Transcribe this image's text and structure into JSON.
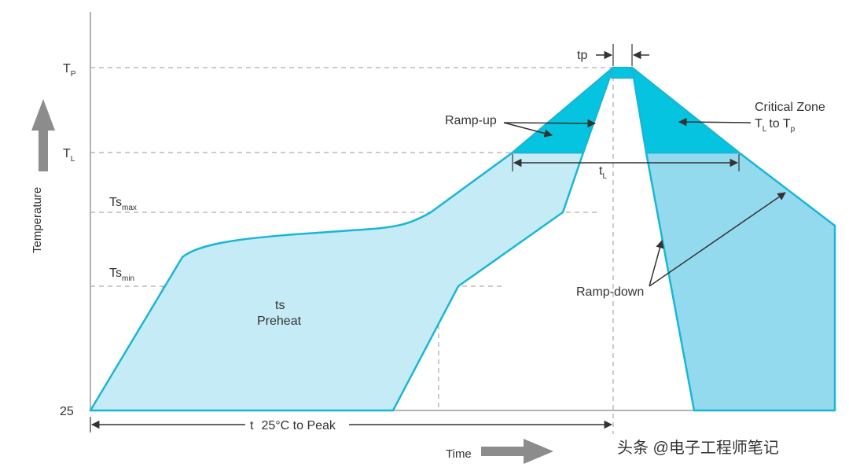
{
  "diagram": {
    "y_levels": {
      "tp": "T",
      "tp_sub": "P",
      "tl": "T",
      "tl_sub": "L",
      "tsmax": "Ts",
      "tsmax_sub": "max",
      "tsmin": "Ts",
      "tsmin_sub": "min",
      "base": "25"
    },
    "axis_y_label": "Temperature",
    "axis_x_label": "Time",
    "labels": {
      "tp_width": "tp",
      "ramp_up": "Ramp-up",
      "critical_zone": "Critical Zone",
      "critical_range_t1": "T",
      "critical_range_t1_sub": "L",
      "critical_range_to": "to T",
      "critical_range_t2_sub": "p",
      "tl_span": "t",
      "tl_span_sub": "L",
      "ts": "ts",
      "preheat": "Preheat",
      "ramp_down": "Ramp-down",
      "total_time_t": "t",
      "total_time_rest": "25°C to Peak"
    },
    "watermark": "头条 @电子工程师笔记"
  },
  "colors": {
    "line": "#19b6d6",
    "light_fill": "#c5ebf6",
    "mid_fill": "#94daee",
    "critical_fill": "#05c4df",
    "dash": "#9a9a9a",
    "text": "#333333",
    "arrow_gray": "#8c8c8c"
  }
}
